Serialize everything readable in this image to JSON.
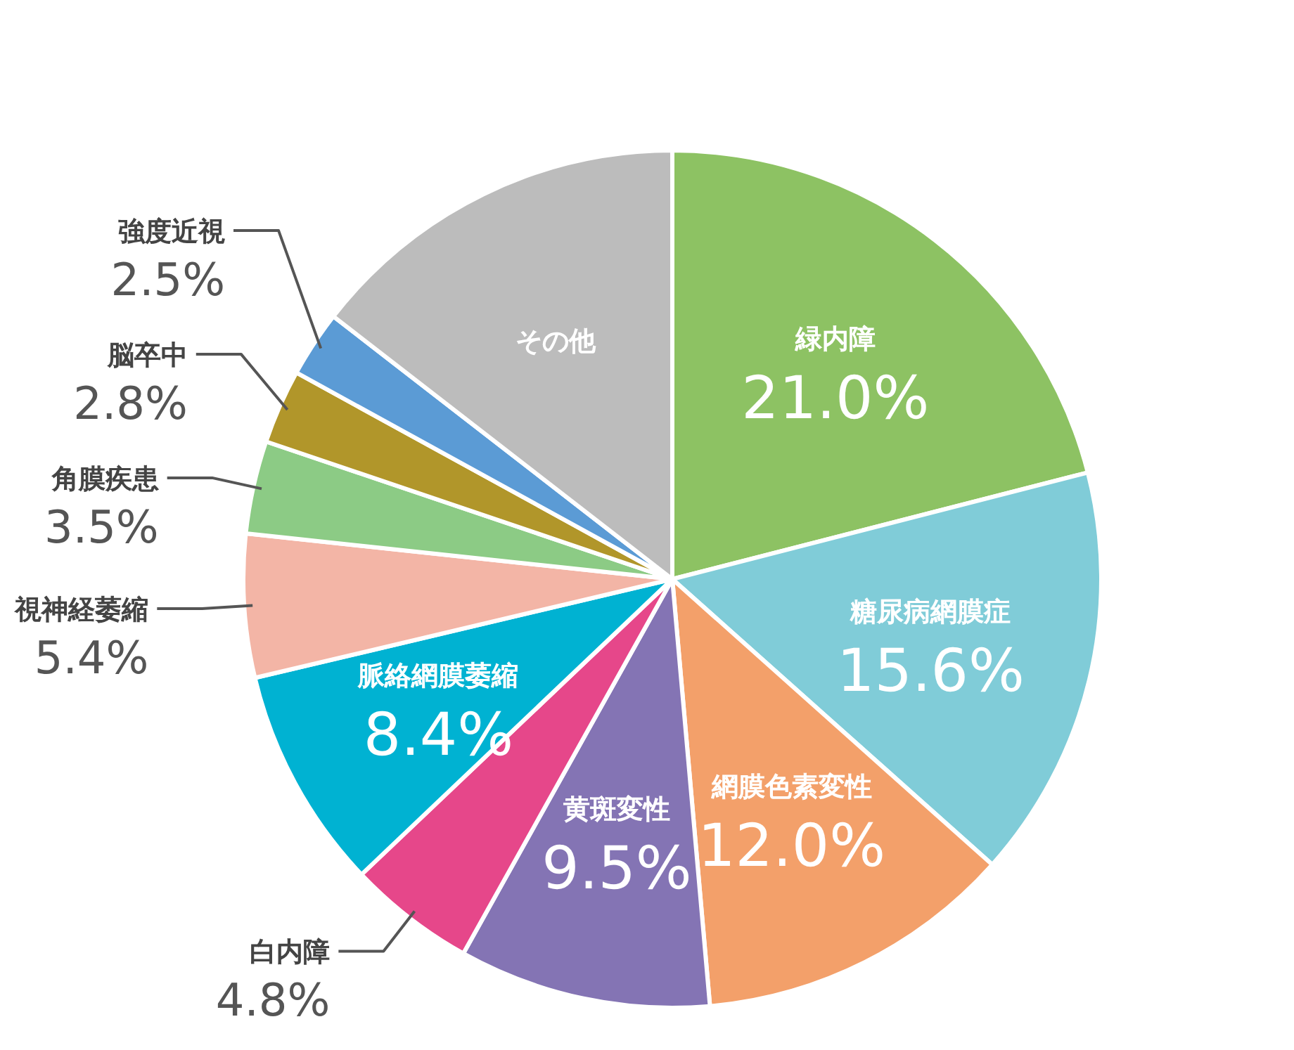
{
  "chart_data": {
    "type": "pie",
    "categories": [
      "緑内障",
      "糖尿病網膜症",
      "網膜色素変性",
      "黄斑変性",
      "白内障",
      "脈絡網膜萎縮",
      "視神経萎縮",
      "角膜疾患",
      "脳卒中",
      "強度近視",
      "その他"
    ],
    "values": [
      21.0,
      15.6,
      12.0,
      9.5,
      4.8,
      8.4,
      5.4,
      3.5,
      2.8,
      2.5,
      14.5
    ],
    "value_labels": [
      "21.0%",
      "15.6%",
      "12.0%",
      "9.5%",
      "4.8%",
      "8.4%",
      "5.4%",
      "3.5%",
      "2.8%",
      "2.5%",
      null
    ],
    "colors": [
      "#8dc263",
      "#80ccd8",
      "#f3a06a",
      "#8474b4",
      "#e6478a",
      "#00b2d2",
      "#f3b5a6",
      "#8ccb85",
      "#b1962a",
      "#5b9bd5",
      "#bcbcbc"
    ],
    "legend": false
  }
}
